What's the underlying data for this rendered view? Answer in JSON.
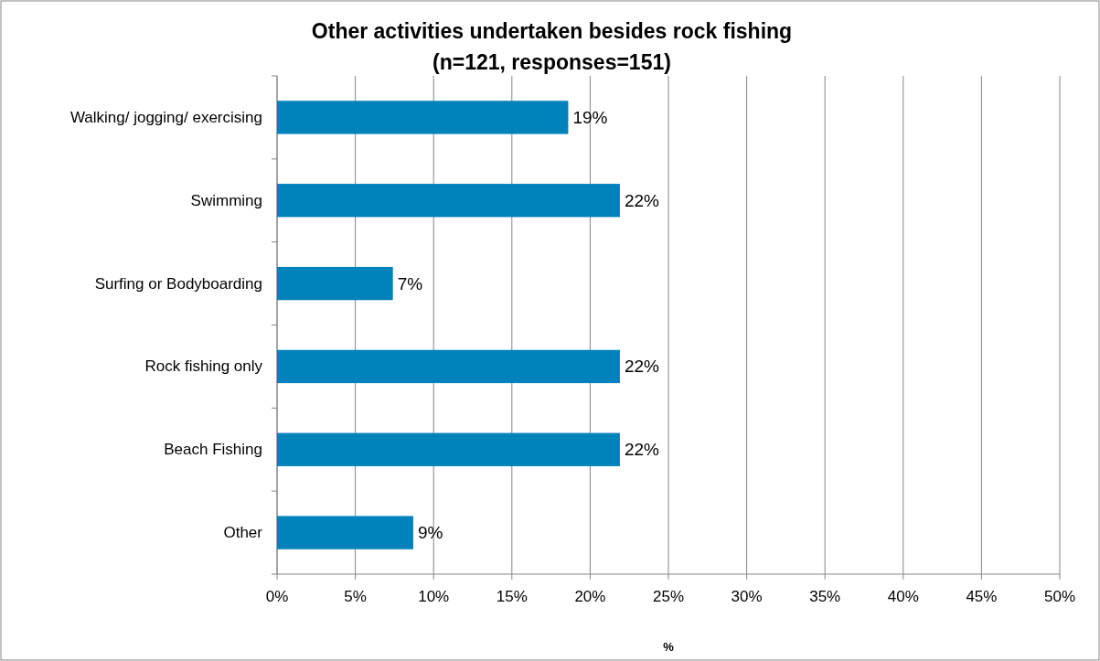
{
  "chart_data": {
    "type": "bar",
    "orientation": "horizontal",
    "title": "Other activities undertaken besides rock fishing\n(n=121, responses=151)",
    "xlabel": "%",
    "categories": [
      "Walking/ jogging/ exercising",
      "Swimming",
      "Surfing or Bodyboarding",
      "Rock fishing only",
      "Beach Fishing",
      "Other"
    ],
    "values": [
      18.6,
      21.9,
      7.4,
      21.9,
      21.9,
      8.7
    ],
    "value_labels": [
      "19%",
      "22%",
      "7%",
      "22%",
      "22%",
      "9%"
    ],
    "color": "#0082ba",
    "xlim": [
      0,
      50
    ],
    "xticks": [
      {
        "value": 0,
        "label": "0%"
      },
      {
        "value": 5,
        "label": "5%"
      },
      {
        "value": 10,
        "label": "10%"
      },
      {
        "value": 15,
        "label": "15%"
      },
      {
        "value": 20,
        "label": "20%"
      },
      {
        "value": 25,
        "label": "25%"
      },
      {
        "value": 30,
        "label": "30%"
      },
      {
        "value": 35,
        "label": "35%"
      },
      {
        "value": 40,
        "label": "40%"
      },
      {
        "value": 45,
        "label": "45%"
      },
      {
        "value": 50,
        "label": "50%"
      }
    ],
    "grid": "x"
  }
}
